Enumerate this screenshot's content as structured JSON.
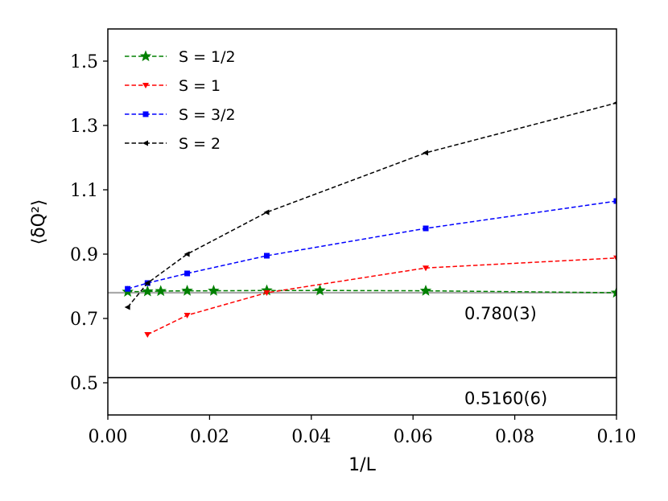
{
  "chart_data": {
    "type": "line",
    "xlabel": "1/L",
    "ylabel": "⟨δQ²⟩",
    "xlim": [
      0.0,
      0.1
    ],
    "ylim": [
      0.4,
      1.6
    ],
    "xticks": [
      0.0,
      0.02,
      0.04,
      0.06,
      0.08,
      0.1
    ],
    "xtick_labels": [
      "0.00",
      "0.02",
      "0.04",
      "0.06",
      "0.08",
      "0.10"
    ],
    "yticks": [
      0.5,
      0.7,
      0.9,
      1.1,
      1.3,
      1.5
    ],
    "ytick_labels": [
      "0.5",
      "0.7",
      "0.9",
      "1.1",
      "1.3",
      "1.5"
    ],
    "grid": false,
    "legend_position": "top-left",
    "series": [
      {
        "name": "S = 1/2",
        "color": "#008000",
        "marker": "star",
        "x": [
          0.0039,
          0.0078,
          0.0104,
          0.0156,
          0.0208,
          0.03125,
          0.0417,
          0.0625,
          0.1
        ],
        "y": [
          0.783,
          0.784,
          0.785,
          0.786,
          0.786,
          0.787,
          0.787,
          0.786,
          0.78
        ]
      },
      {
        "name": "S = 1",
        "color": "#ff0000",
        "marker": "triangle-down",
        "x": [
          0.0078,
          0.0156,
          0.03125,
          0.0625,
          0.1
        ],
        "y": [
          0.65,
          0.71,
          0.78,
          0.857,
          0.888
        ]
      },
      {
        "name": "S = 3/2",
        "color": "#0000ff",
        "marker": "square",
        "x": [
          0.0039,
          0.0078,
          0.0156,
          0.03125,
          0.0625,
          0.1
        ],
        "y": [
          0.792,
          0.81,
          0.84,
          0.895,
          0.98,
          1.065
        ]
      },
      {
        "name": "S = 2",
        "color": "#000000",
        "marker": "triangle-left",
        "x": [
          0.0039,
          0.0078,
          0.0156,
          0.03125,
          0.0625,
          0.1
        ],
        "y": [
          0.735,
          0.81,
          0.9,
          1.03,
          1.215,
          1.37
        ]
      }
    ],
    "reference_lines": [
      {
        "y": 0.78,
        "label": "0.780(3)",
        "color": "#aaaaaa"
      },
      {
        "y": 0.516,
        "label": "0.5160(6)",
        "color": "#000000"
      }
    ]
  }
}
